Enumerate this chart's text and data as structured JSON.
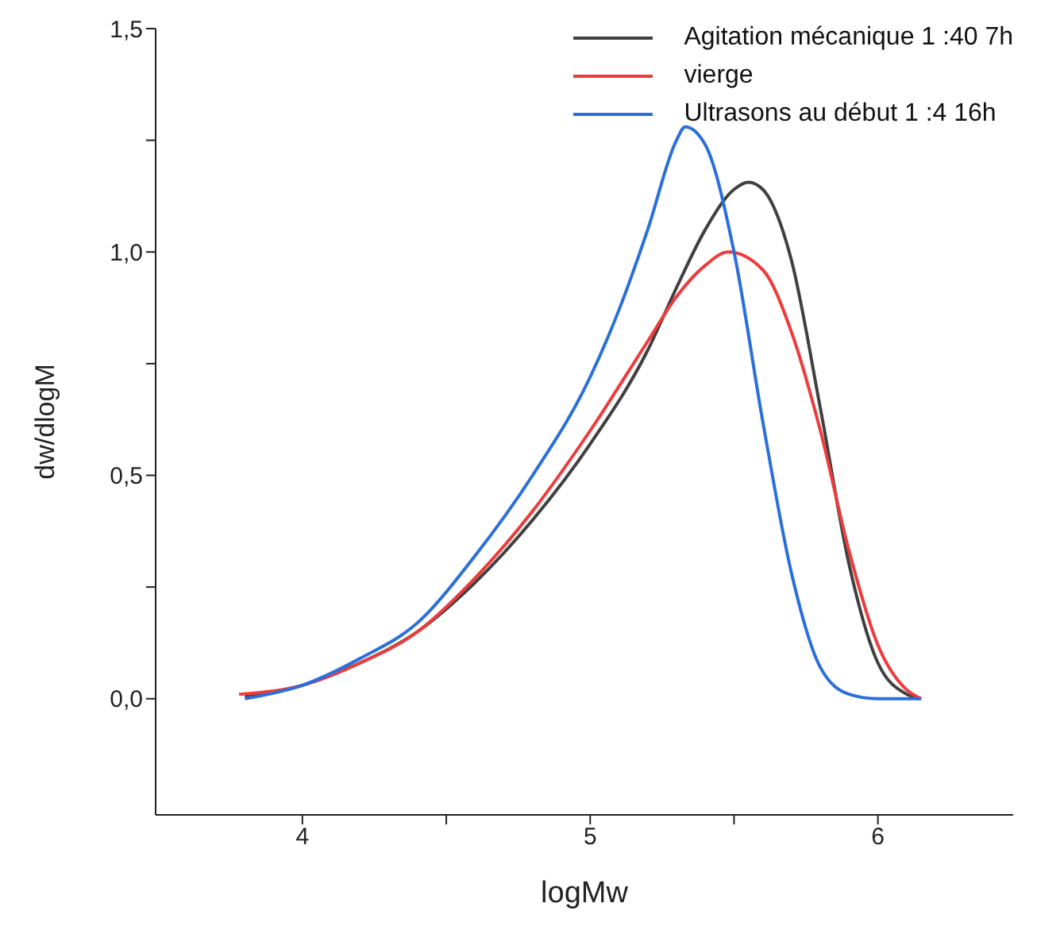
{
  "chart_data": {
    "type": "line",
    "xlabel": "logMw",
    "ylabel": "dw/dlogM",
    "xlim": [
      3.49,
      6.47
    ],
    "ylim": [
      -0.26,
      1.5
    ],
    "xticks": [
      4,
      {
        "value": 4.5,
        "label": null
      },
      5,
      {
        "value": 5.5,
        "label": null
      },
      6
    ],
    "yticks": [
      {
        "value": 0,
        "label": "0,0"
      },
      {
        "value": 0.25,
        "label": null
      },
      {
        "value": 0.5,
        "label": "0,5"
      },
      {
        "value": 0.75,
        "label": null
      },
      {
        "value": 1,
        "label": "1,0"
      },
      {
        "value": 1.25,
        "label": null
      },
      {
        "value": 1.5,
        "label": "1,5"
      }
    ],
    "grid": false,
    "legend": "top right",
    "marker": "none",
    "line_style": "solid",
    "series": [
      {
        "name": "Agitation mécanique 1 :40 7h",
        "color": "#404040",
        "x": [
          3.8,
          4.0,
          4.2,
          4.4,
          4.6,
          4.8,
          5.0,
          5.2,
          5.3,
          5.4,
          5.5,
          5.55,
          5.6,
          5.7,
          5.8,
          5.9,
          6.0,
          6.1,
          6.15
        ],
        "values": [
          0.005,
          0.03,
          0.08,
          0.15,
          0.26,
          0.4,
          0.57,
          0.78,
          0.92,
          1.05,
          1.14,
          1.156,
          1.14,
          0.98,
          0.65,
          0.3,
          0.08,
          0.01,
          0
        ]
      },
      {
        "name": "vierge",
        "color": "#ee3b3b",
        "x": [
          3.78,
          4.0,
          4.2,
          4.4,
          4.6,
          4.8,
          5.0,
          5.2,
          5.3,
          5.4,
          5.48,
          5.6,
          5.7,
          5.8,
          5.9,
          6.0,
          6.1,
          6.15
        ],
        "values": [
          0.01,
          0.03,
          0.08,
          0.15,
          0.27,
          0.42,
          0.6,
          0.8,
          0.9,
          0.97,
          1.0,
          0.96,
          0.82,
          0.6,
          0.33,
          0.12,
          0.02,
          0
        ]
      },
      {
        "name": "Ultrasons au début 1 :4 16h",
        "color": "#2a6fdb",
        "x": [
          3.8,
          4.0,
          4.2,
          4.4,
          4.6,
          4.8,
          5.0,
          5.1,
          5.2,
          5.3,
          5.33,
          5.4,
          5.5,
          5.6,
          5.7,
          5.8,
          5.9,
          6.0,
          6.15
        ],
        "values": [
          0,
          0.03,
          0.09,
          0.17,
          0.32,
          0.5,
          0.72,
          0.87,
          1.05,
          1.25,
          1.28,
          1.24,
          1.0,
          0.62,
          0.28,
          0.07,
          0.01,
          0,
          0
        ]
      }
    ]
  }
}
